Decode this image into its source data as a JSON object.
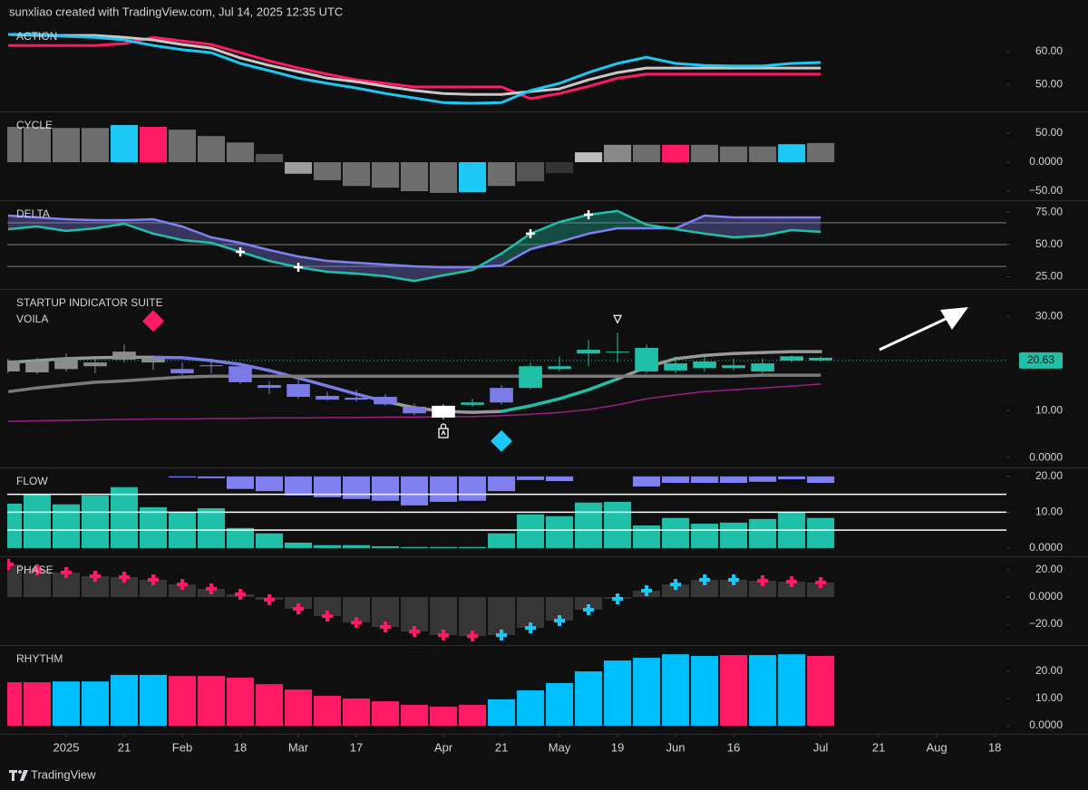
{
  "header": "sunxliao created with TradingView.com, Jul 14, 2025 12:35 UTC",
  "footer": "TradingView",
  "chart_data": [
    {
      "type": "line",
      "title": "ACTION",
      "ylim": [
        41.7,
        68.9
      ],
      "yticks": [
        {
          "value": 50,
          "label": "50.00"
        },
        {
          "value": 60,
          "label": "60.00"
        }
      ],
      "series": [
        {
          "color": "#ff1a66",
          "values": [
            61.9,
            61.9,
            61.9,
            61.9,
            62.5,
            64.4,
            63.3,
            62.2,
            59.7,
            57.2,
            55.0,
            53.1,
            51.4,
            50.3,
            49.2,
            49.2,
            49.2,
            49.2,
            45.6,
            47.2,
            49.4,
            51.9,
            53.1,
            53.1,
            53.1,
            53.1,
            53.1,
            53.1,
            53.1
          ]
        },
        {
          "color": "#c8c8c8",
          "values": [
            65.3,
            65.0,
            65.0,
            65.0,
            64.4,
            63.6,
            62.2,
            61.1,
            58.1,
            55.8,
            53.9,
            51.9,
            50.8,
            49.4,
            48.1,
            47.2,
            46.9,
            46.9,
            47.8,
            48.6,
            51.4,
            53.6,
            55.0,
            55.0,
            55.0,
            55.0,
            55.0,
            55.0,
            55.0
          ]
        },
        {
          "color": "#1ec8f5",
          "values": [
            65.3,
            65.3,
            64.7,
            64.4,
            63.6,
            61.9,
            60.6,
            59.7,
            56.4,
            54.2,
            51.9,
            50.3,
            48.9,
            47.2,
            45.8,
            44.4,
            44.2,
            44.4,
            48.1,
            50.3,
            53.6,
            56.4,
            58.3,
            56.4,
            55.8,
            55.6,
            55.6,
            56.4,
            56.7
          ]
        }
      ]
    },
    {
      "type": "bar",
      "title": "CYCLE",
      "ylim": [
        -65.6,
        87.5
      ],
      "yticks": [
        {
          "value": -50,
          "label": "−50.00"
        },
        {
          "value": 0,
          "label": "0.0000"
        },
        {
          "value": 50,
          "label": "50.00"
        }
      ],
      "series": [
        {
          "values": [
            61,
            61,
            59,
            59,
            64,
            61,
            56,
            45,
            34,
            14,
            -20,
            -31,
            -41,
            -44,
            -50,
            -53,
            -52,
            -41,
            -33,
            -19,
            17,
            30,
            30,
            30,
            30,
            27,
            27,
            31,
            33
          ],
          "colors": [
            "#6e6e6e",
            "#6e6e6e",
            "#6e6e6e",
            "#6e6e6e",
            "#1ec8f5",
            "#ff1a66",
            "#6e6e6e",
            "#6e6e6e",
            "#6e6e6e",
            "#555555",
            "#9e9e9e",
            "#6e6e6e",
            "#6e6e6e",
            "#6e6e6e",
            "#6e6e6e",
            "#6e6e6e",
            "#1ec8f5",
            "#6e6e6e",
            "#555555",
            "#333333",
            "#bdbdbd",
            "#8a8a8a",
            "#6e6e6e",
            "#ff1a66",
            "#6e6e6e",
            "#6e6e6e",
            "#6e6e6e",
            "#1ec8f5",
            "#6e6e6e"
          ]
        }
      ]
    },
    {
      "type": "line",
      "title": "DELTA",
      "ylim": [
        15.5,
        84.5
      ],
      "yticks": [
        {
          "value": 25,
          "label": "25.00"
        },
        {
          "value": 50,
          "label": "50.00"
        },
        {
          "value": 75,
          "label": "75.00"
        }
      ],
      "levels": [
        67,
        50,
        33
      ],
      "level_color": "#5a5a5a",
      "fill_between": true,
      "series": [
        {
          "color": "#8080f0",
          "values": [
            72.5,
            71.1,
            69.7,
            69.0,
            69.0,
            69.7,
            64.1,
            55.6,
            51.4,
            45.8,
            40.8,
            37.3,
            35.9,
            34.5,
            33.1,
            32.4,
            32.4,
            33.8,
            46.5,
            52.1,
            58.5,
            62.7,
            62.7,
            62.7,
            72.5,
            71.1,
            71.1,
            71.1,
            71.1
          ]
        },
        {
          "color": "#20c0a8",
          "values": [
            62.0,
            64.1,
            60.6,
            62.7,
            66.2,
            58.5,
            53.5,
            51.4,
            44.4,
            37.3,
            32.4,
            28.9,
            27.5,
            25.4,
            21.8,
            26.1,
            30.3,
            43.0,
            58.5,
            67.6,
            73.2,
            76.1,
            65.5,
            62.0,
            58.5,
            55.6,
            57.0,
            61.3,
            59.9
          ]
        }
      ],
      "signal_x": [
        8,
        10,
        18,
        20
      ]
    },
    {
      "type": "candlestick",
      "title": "STARTUP INDICATOR SUITE",
      "subtitle": "VOILA",
      "ylim": [
        -2.1,
        35.8
      ],
      "yticks": [
        {
          "value": 0,
          "label": "0.0000"
        },
        {
          "value": 10,
          "label": "10.00"
        },
        {
          "value": 30,
          "label": "30.00"
        }
      ],
      "open": [
        20.6,
        20.4,
        18.8,
        19.4,
        20.8,
        21.2,
        18.8,
        19.6,
        19.4,
        15.4,
        15.6,
        13.1,
        12.7,
        12.9,
        10.8,
        8.5,
        11.2,
        11.7,
        14.8,
        18.8,
        22.1,
        22.3,
        23.3,
        20.0,
        20.4,
        19.6,
        18.3,
        20.6,
        21.2
      ],
      "high": [
        21.0,
        21.2,
        22.1,
        21.5,
        24.0,
        21.7,
        20.2,
        20.6,
        20.2,
        16.3,
        16.7,
        14.0,
        14.4,
        13.5,
        11.5,
        11.3,
        12.5,
        15.4,
        20.2,
        21.5,
        25.0,
        26.5,
        24.0,
        21.5,
        21.5,
        21.0,
        21.0,
        21.7,
        21.5
      ],
      "low": [
        17.9,
        17.7,
        18.3,
        17.9,
        20.2,
        18.7,
        17.5,
        17.9,
        15.6,
        13.5,
        12.5,
        12.1,
        11.9,
        11.0,
        9.0,
        8.1,
        10.8,
        11.2,
        14.4,
        18.3,
        19.4,
        20.2,
        17.9,
        17.9,
        18.3,
        18.5,
        17.9,
        20.2,
        20.4
      ],
      "close": [
        18.3,
        18.1,
        21.2,
        20.2,
        22.5,
        20.2,
        17.9,
        19.4,
        16.0,
        14.8,
        12.9,
        12.3,
        12.3,
        11.3,
        9.4,
        11.0,
        11.7,
        14.8,
        19.4,
        19.4,
        22.9,
        22.5,
        18.3,
        18.5,
        19.0,
        19.0,
        20.0,
        21.5,
        20.63
      ],
      "colors": [
        "#8c8c8c",
        "#8c8c8c",
        "#8c8c8c",
        "#8c8c8c",
        "#8c8c8c",
        "#8c8c8c",
        "#7b7be8",
        "#7b7be8",
        "#7b7be8",
        "#7b7be8",
        "#7b7be8",
        "#7b7be8",
        "#7b7be8",
        "#7b7be8",
        "#7b7be8",
        "#ffffff",
        "#20c0a8",
        "#7b7be8",
        "#20c0a8",
        "#20c0a8",
        "#20c0a8",
        "#20c0a8",
        "#20c0a8",
        "#20c0a8",
        "#20c0a8",
        "#20c0a8",
        "#20c0a8",
        "#20c0a8",
        "#20c0a8"
      ],
      "lines": [
        {
          "values": [
            20.2,
            20.6,
            21.0,
            21.2,
            21.3,
            21.3,
            21.2,
            20.6,
            19.8,
            18.5,
            16.9,
            15.2,
            13.5,
            11.9,
            10.6,
            9.8,
            9.6,
            9.8,
            11.0,
            12.5,
            14.4,
            16.7,
            19.2,
            21.0,
            21.7,
            22.1,
            22.3,
            22.5,
            22.5
          ],
          "colors": [
            "#9a9a9a",
            "#9a9a9a",
            "#9a9a9a",
            "#9a9a9a",
            "#9a9a9a",
            "#7b7be8",
            "#7b7be8",
            "#7b7be8",
            "#7b7be8",
            "#7b7be8",
            "#7b7be8",
            "#7b7be8",
            "#7b7be8",
            "#9a9a9a",
            "#9a9a9a",
            "#9a9a9a",
            "#9a9a9a",
            "#20c0a8",
            "#20c0a8",
            "#20c0a8",
            "#20c0a8",
            "#9a9a9a",
            "#9a9a9a",
            "#9a9a9a",
            "#9a9a9a",
            "#9a9a9a",
            "#9a9a9a",
            "#9a9a9a",
            "#9a9a9a"
          ]
        },
        {
          "color": "#7a7a7a",
          "values": [
            14.0,
            14.8,
            15.4,
            16.0,
            16.3,
            16.7,
            17.1,
            17.3,
            17.3,
            17.3,
            17.3,
            17.3,
            17.3,
            17.3,
            17.3,
            17.3,
            17.3,
            17.3,
            17.3,
            17.3,
            17.3,
            17.3,
            17.3,
            17.3,
            17.3,
            17.3,
            17.5,
            17.5,
            17.5
          ]
        },
        {
          "color": "#9c1f86",
          "values": [
            7.7,
            7.8,
            7.9,
            8.0,
            8.1,
            8.2,
            8.2,
            8.3,
            8.3,
            8.4,
            8.4,
            8.5,
            8.5,
            8.6,
            8.6,
            8.7,
            8.7,
            8.9,
            9.2,
            9.6,
            10.2,
            11.2,
            12.5,
            13.3,
            14.0,
            14.4,
            14.8,
            15.2,
            15.6
          ]
        }
      ],
      "markers": [
        {
          "x": 5,
          "y": 29.0,
          "shape": "diamond",
          "color": "#ff1a66"
        },
        {
          "x": 17,
          "y": 3.5,
          "shape": "diamond",
          "color": "#1ec8f5"
        },
        {
          "x": 21,
          "y": 29.4,
          "shape": "triangle-down",
          "color": "#ffffff"
        },
        {
          "x": 15,
          "y": 5.4,
          "shape": "bag",
          "color": "#ffffff"
        }
      ],
      "last_price": 20.63,
      "last_price_color": "#20c0a8"
    },
    {
      "type": "bar",
      "title": "FLOW",
      "ylim": [
        -2.3,
        22.5
      ],
      "yticks": [
        {
          "value": 0,
          "label": "0.0000"
        },
        {
          "value": 10,
          "label": "10.00"
        },
        {
          "value": 20,
          "label": "20.00"
        }
      ],
      "levels": [
        15,
        10,
        5
      ],
      "level_color": "#ffffff",
      "series": [
        {
          "color": "#20c0a8",
          "values": [
            12.4,
            14.9,
            12.2,
            14.7,
            17.0,
            11.4,
            10.1,
            11.1,
            5.6,
            4.1,
            1.5,
            0.8,
            0.8,
            0.5,
            0.3,
            0.3,
            0.3,
            4.1,
            9.4,
            8.9,
            12.7,
            12.9,
            6.3,
            8.4,
            6.8,
            7.1,
            8.1,
            9.9,
            8.4
          ]
        },
        {
          "color": "#8080f0",
          "base": 20,
          "values": [
            null,
            null,
            null,
            null,
            null,
            null,
            19.7,
            19.5,
            16.5,
            15.9,
            14.7,
            14.2,
            13.7,
            13.2,
            11.9,
            12.9,
            13.2,
            15.9,
            19.0,
            18.7,
            null,
            null,
            17.2,
            18.2,
            18.2,
            18.2,
            18.5,
            19.2,
            18.2
          ]
        }
      ]
    },
    {
      "type": "bar",
      "title": "PHASE",
      "ylim": [
        -35.3,
        30
      ],
      "yticks": [
        {
          "value": -20,
          "label": "−20.00"
        },
        {
          "value": 0,
          "label": "0.0000"
        },
        {
          "value": 20,
          "label": "20.00"
        }
      ],
      "series": [
        {
          "color": "#363636",
          "marker": "cross",
          "values": [
            24.0,
            20.0,
            18.0,
            15.3,
            14.7,
            12.7,
            9.3,
            6.0,
            2.0,
            -2.0,
            -8.7,
            -14.0,
            -18.7,
            -22.0,
            -25.3,
            -28.0,
            -28.7,
            -28.0,
            -22.7,
            -17.3,
            -9.3,
            -1.3,
            4.7,
            9.3,
            12.7,
            12.7,
            12.0,
            11.3,
            10.7
          ],
          "marker_colors": [
            "#ff1a66",
            "#ff1a66",
            "#ff1a66",
            "#ff1a66",
            "#ff1a66",
            "#ff1a66",
            "#ff1a66",
            "#ff1a66",
            "#ff1a66",
            "#ff1a66",
            "#ff1a66",
            "#ff1a66",
            "#ff1a66",
            "#ff1a66",
            "#ff1a66",
            "#ff1a66",
            "#ff1a66",
            "#1ec8f5",
            "#1ec8f5",
            "#1ec8f5",
            "#1ec8f5",
            "#1ec8f5",
            "#1ec8f5",
            "#1ec8f5",
            "#1ec8f5",
            "#1ec8f5",
            "#ff1a66",
            "#ff1a66",
            "#ff1a66"
          ]
        }
      ]
    },
    {
      "type": "bar",
      "title": "RHYTHM",
      "ylim": [
        -3.0,
        29.7
      ],
      "yticks": [
        {
          "value": 0,
          "label": "0.0000"
        },
        {
          "value": 10,
          "label": "10.00"
        },
        {
          "value": 20,
          "label": "20.00"
        }
      ],
      "series": [
        {
          "values": [
            16.0,
            16.0,
            16.3,
            16.3,
            18.7,
            18.7,
            18.3,
            18.3,
            17.7,
            15.3,
            13.3,
            11.0,
            10.0,
            9.0,
            7.7,
            7.0,
            7.7,
            9.7,
            13.0,
            15.7,
            20.0,
            24.0,
            25.0,
            26.3,
            25.7,
            26.0,
            26.0,
            26.3,
            25.7
          ],
          "colors": [
            "#ff1a66",
            "#ff1a66",
            "#00bfff",
            "#00bfff",
            "#00bfff",
            "#00bfff",
            "#ff1a66",
            "#ff1a66",
            "#ff1a66",
            "#ff1a66",
            "#ff1a66",
            "#ff1a66",
            "#ff1a66",
            "#ff1a66",
            "#ff1a66",
            "#ff1a66",
            "#ff1a66",
            "#00bfff",
            "#00bfff",
            "#00bfff",
            "#00bfff",
            "#00bfff",
            "#00bfff",
            "#00bfff",
            "#00bfff",
            "#ff1a66",
            "#00bfff",
            "#00bfff",
            "#ff1a66"
          ]
        }
      ],
      "xlim": [
        -0.03,
        34.4
      ],
      "xticks": [
        {
          "value": 2,
          "label": "2025"
        },
        {
          "value": 4,
          "label": "21"
        },
        {
          "value": 6,
          "label": "Feb"
        },
        {
          "value": 8,
          "label": "18"
        },
        {
          "value": 10,
          "label": "Mar"
        },
        {
          "value": 12,
          "label": "17"
        },
        {
          "value": 15,
          "label": "Apr"
        },
        {
          "value": 17,
          "label": "21"
        },
        {
          "value": 19,
          "label": "May"
        },
        {
          "value": 21,
          "label": "19"
        },
        {
          "value": 23,
          "label": "Jun"
        },
        {
          "value": 25,
          "label": "16"
        },
        {
          "value": 28,
          "label": "Jul"
        },
        {
          "value": 30,
          "label": "21"
        },
        {
          "value": 32,
          "label": "Aug"
        },
        {
          "value": 34,
          "label": "18"
        }
      ]
    }
  ]
}
